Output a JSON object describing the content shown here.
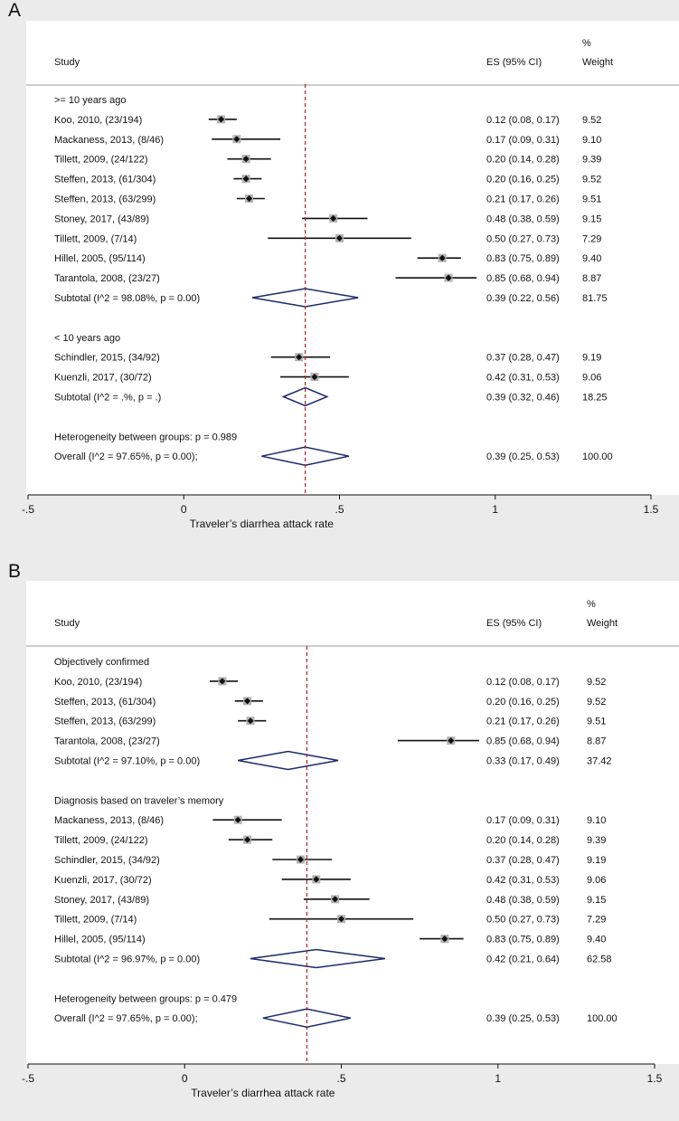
{
  "chart_data": [
    {
      "type": "forest",
      "panel_label": "A",
      "header": {
        "study": "Study",
        "es": "ES (95% CI)",
        "weight_pct": "%",
        "weight": "Weight"
      },
      "xlabel": "Traveler’s diarrhea attack rate",
      "xlim": [
        -0.5,
        1.5
      ],
      "xticks": [
        -0.5,
        0,
        0.5,
        1,
        1.5
      ],
      "xtick_labels": [
        "-.5",
        "0",
        ".5",
        "1",
        "1.5"
      ],
      "reference_line": 0.39,
      "rows": [
        {
          "kind": "group",
          "label": ">= 10 years ago"
        },
        {
          "kind": "study",
          "label": "Koo, 2010, (23/194)",
          "es": 0.12,
          "lo": 0.08,
          "hi": 0.17,
          "es_text": "0.12 (0.08, 0.17)",
          "weight": "9.52"
        },
        {
          "kind": "study",
          "label": "Mackaness, 2013, (8/46)",
          "es": 0.17,
          "lo": 0.09,
          "hi": 0.31,
          "es_text": "0.17 (0.09, 0.31)",
          "weight": "9.10"
        },
        {
          "kind": "study",
          "label": "Tillett, 2009, (24/122)",
          "es": 0.2,
          "lo": 0.14,
          "hi": 0.28,
          "es_text": "0.20 (0.14, 0.28)",
          "weight": "9.39"
        },
        {
          "kind": "study",
          "label": "Steffen, 2013, (61/304)",
          "es": 0.2,
          "lo": 0.16,
          "hi": 0.25,
          "es_text": "0.20 (0.16, 0.25)",
          "weight": "9.52"
        },
        {
          "kind": "study",
          "label": "Steffen, 2013, (63/299)",
          "es": 0.21,
          "lo": 0.17,
          "hi": 0.26,
          "es_text": "0.21 (0.17, 0.26)",
          "weight": "9.51"
        },
        {
          "kind": "study",
          "label": "Stoney, 2017, (43/89)",
          "es": 0.48,
          "lo": 0.38,
          "hi": 0.59,
          "es_text": "0.48 (0.38, 0.59)",
          "weight": "9.15"
        },
        {
          "kind": "study",
          "label": "Tillett, 2009, (7/14)",
          "es": 0.5,
          "lo": 0.27,
          "hi": 0.73,
          "es_text": "0.50 (0.27, 0.73)",
          "weight": "7.29"
        },
        {
          "kind": "study",
          "label": "Hillel, 2005, (95/114)",
          "es": 0.83,
          "lo": 0.75,
          "hi": 0.89,
          "es_text": "0.83 (0.75, 0.89)",
          "weight": "9.40"
        },
        {
          "kind": "study",
          "label": "Tarantola, 2008, (23/27)",
          "es": 0.85,
          "lo": 0.68,
          "hi": 0.94,
          "es_text": "0.85 (0.68, 0.94)",
          "weight": "8.87"
        },
        {
          "kind": "subtotal",
          "label": "Subtotal  (I^2 = 98.08%, p = 0.00)",
          "es": 0.39,
          "lo": 0.22,
          "hi": 0.56,
          "es_text": "0.39 (0.22, 0.56)",
          "weight": "81.75"
        },
        {
          "kind": "gap"
        },
        {
          "kind": "group",
          "label": "< 10 years ago"
        },
        {
          "kind": "study",
          "label": "Schindler, 2015, (34/92)",
          "es": 0.37,
          "lo": 0.28,
          "hi": 0.47,
          "es_text": "0.37 (0.28, 0.47)",
          "weight": "9.19"
        },
        {
          "kind": "study",
          "label": "Kuenzli, 2017, (30/72)",
          "es": 0.42,
          "lo": 0.31,
          "hi": 0.53,
          "es_text": "0.42 (0.31, 0.53)",
          "weight": "9.06"
        },
        {
          "kind": "subtotal",
          "label": "Subtotal  (I^2 = .%, p = .)",
          "es": 0.39,
          "lo": 0.32,
          "hi": 0.46,
          "es_text": "0.39 (0.32, 0.46)",
          "weight": "18.25"
        },
        {
          "kind": "gap"
        },
        {
          "kind": "text",
          "label": "Heterogeneity between groups: p = 0.989"
        },
        {
          "kind": "overall",
          "label": "Overall  (I^2 = 97.65%, p = 0.00);",
          "es": 0.39,
          "lo": 0.25,
          "hi": 0.53,
          "es_text": "0.39 (0.25, 0.53)",
          "weight": "100.00"
        }
      ]
    },
    {
      "type": "forest",
      "panel_label": "B",
      "header": {
        "study": "Study",
        "es": "ES (95% CI)",
        "weight_pct": "%",
        "weight": "Weight"
      },
      "xlabel": "Traveler’s diarrhea attack rate",
      "xlim": [
        -0.5,
        1.5
      ],
      "xticks": [
        -0.5,
        0,
        0.5,
        1,
        1.5
      ],
      "xtick_labels": [
        "-.5",
        "0",
        ".5",
        "1",
        "1.5"
      ],
      "reference_line": 0.39,
      "rows": [
        {
          "kind": "group",
          "label": "Objectively confirmed"
        },
        {
          "kind": "study",
          "label": "Koo, 2010, (23/194)",
          "es": 0.12,
          "lo": 0.08,
          "hi": 0.17,
          "es_text": "0.12 (0.08, 0.17)",
          "weight": "9.52"
        },
        {
          "kind": "study",
          "label": "Steffen, 2013, (61/304)",
          "es": 0.2,
          "lo": 0.16,
          "hi": 0.25,
          "es_text": "0.20 (0.16, 0.25)",
          "weight": "9.52"
        },
        {
          "kind": "study",
          "label": "Steffen, 2013, (63/299)",
          "es": 0.21,
          "lo": 0.17,
          "hi": 0.26,
          "es_text": "0.21 (0.17, 0.26)",
          "weight": "9.51"
        },
        {
          "kind": "study",
          "label": "Tarantola, 2008, (23/27)",
          "es": 0.85,
          "lo": 0.68,
          "hi": 0.94,
          "es_text": "0.85 (0.68, 0.94)",
          "weight": "8.87"
        },
        {
          "kind": "subtotal",
          "label": "Subtotal  (I^2 = 97.10%, p = 0.00)",
          "es": 0.33,
          "lo": 0.17,
          "hi": 0.49,
          "es_text": "0.33 (0.17, 0.49)",
          "weight": "37.42"
        },
        {
          "kind": "gap"
        },
        {
          "kind": "group",
          "label": "Diagnosis based on traveler’s memory"
        },
        {
          "kind": "study",
          "label": "Mackaness, 2013, (8/46)",
          "es": 0.17,
          "lo": 0.09,
          "hi": 0.31,
          "es_text": "0.17 (0.09, 0.31)",
          "weight": "9.10"
        },
        {
          "kind": "study",
          "label": "Tillett, 2009, (24/122)",
          "es": 0.2,
          "lo": 0.14,
          "hi": 0.28,
          "es_text": "0.20 (0.14, 0.28)",
          "weight": "9.39"
        },
        {
          "kind": "study",
          "label": "Schindler, 2015, (34/92)",
          "es": 0.37,
          "lo": 0.28,
          "hi": 0.47,
          "es_text": "0.37 (0.28, 0.47)",
          "weight": "9.19"
        },
        {
          "kind": "study",
          "label": "Kuenzli, 2017, (30/72)",
          "es": 0.42,
          "lo": 0.31,
          "hi": 0.53,
          "es_text": "0.42 (0.31, 0.53)",
          "weight": "9.06"
        },
        {
          "kind": "study",
          "label": "Stoney, 2017, (43/89)",
          "es": 0.48,
          "lo": 0.38,
          "hi": 0.59,
          "es_text": "0.48 (0.38, 0.59)",
          "weight": "9.15"
        },
        {
          "kind": "study",
          "label": "Tillett, 2009, (7/14)",
          "es": 0.5,
          "lo": 0.27,
          "hi": 0.73,
          "es_text": "0.50 (0.27, 0.73)",
          "weight": "7.29"
        },
        {
          "kind": "study",
          "label": "Hillel, 2005, (95/114)",
          "es": 0.83,
          "lo": 0.75,
          "hi": 0.89,
          "es_text": "0.83 (0.75, 0.89)",
          "weight": "9.40"
        },
        {
          "kind": "subtotal",
          "label": "Subtotal  (I^2 = 96.97%, p = 0.00)",
          "es": 0.42,
          "lo": 0.21,
          "hi": 0.64,
          "es_text": "0.42 (0.21, 0.64)",
          "weight": "62.58"
        },
        {
          "kind": "gap"
        },
        {
          "kind": "text",
          "label": "Heterogeneity between groups: p = 0.479"
        },
        {
          "kind": "overall",
          "label": "Overall  (I^2 = 97.65%, p = 0.00);",
          "es": 0.39,
          "lo": 0.25,
          "hi": 0.53,
          "es_text": "0.39 (0.25, 0.53)",
          "weight": "100.00"
        }
      ]
    }
  ],
  "colors": {
    "page_bg": "#ebebeb",
    "plot_bg": "#ffffff",
    "diamond": "#1a2a6c",
    "reference_line": "#b22222",
    "ci_line": "#111111",
    "weight_box": "#b3b3b3",
    "point": "#111111"
  }
}
